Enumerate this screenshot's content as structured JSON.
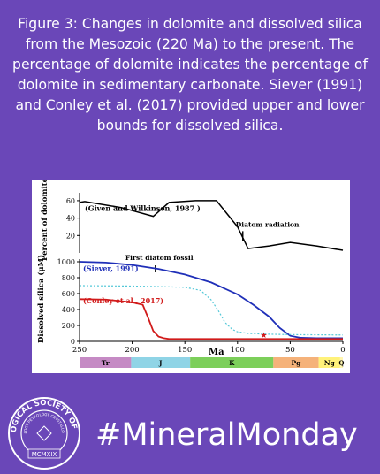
{
  "caption": "Figure 3: Changes in dolomite and dissolved silica from the Mesozoic (220 Ma) to the present. The percentage of dolomite indicates the percentage of dolomite in sedimentary carbonate. Siever (1991) and Conley et al. (2017) provided upper and lower bounds for dissolved silica.",
  "hashtag": "#MineralMonday",
  "seal": {
    "text": "MINERALOGICAL SOCIETY OF AMERICA",
    "inner_text": "MINERALOGY PETROLOGY CRYSTALLOGRAPHY",
    "date": "MCMXIX"
  },
  "colors": {
    "background": "#6a47b8",
    "siever": "#1f2fb8",
    "conley": "#d11a1a",
    "dotted": "#54c8d8"
  },
  "chart_data": [
    {
      "type": "line",
      "ylabel": "Percent of dolomite",
      "yticks": [
        20,
        40,
        60
      ],
      "ylim": [
        0,
        65
      ],
      "xlim": [
        250,
        0
      ],
      "series": [
        {
          "name": "(Given and Wilkinson, 1987 )",
          "x": [
            250,
            245,
            210,
            180,
            165,
            140,
            120,
            100,
            90,
            70,
            50,
            25,
            0
          ],
          "y": [
            58,
            59,
            52,
            42,
            58,
            60,
            60,
            30,
            5,
            8,
            12,
            8,
            3
          ]
        }
      ],
      "annotations": [
        {
          "text": "Diatom radiation",
          "x": 95
        },
        {
          "text": "First diatom fossil",
          "x": 178
        }
      ]
    },
    {
      "type": "line",
      "ylabel": "Dissolved silica (μM)",
      "yticks": [
        0,
        200,
        400,
        600,
        800,
        1000
      ],
      "ylim": [
        0,
        1000
      ],
      "xlabel": "Ma",
      "xticks": [
        250,
        200,
        150,
        100,
        50,
        0
      ],
      "xlim": [
        250,
        0
      ],
      "series": [
        {
          "name": "(Siever, 1991)",
          "x": [
            250,
            225,
            200,
            175,
            150,
            125,
            100,
            85,
            70,
            60,
            50,
            40,
            25,
            0
          ],
          "y": [
            1000,
            990,
            960,
            910,
            840,
            740,
            590,
            460,
            310,
            170,
            70,
            45,
            40,
            40
          ]
        },
        {
          "name": "(Conley et al., 2017)",
          "x": [
            250,
            225,
            200,
            190,
            185,
            180,
            175,
            170,
            165,
            150,
            100,
            50,
            25,
            0
          ],
          "y": [
            530,
            525,
            490,
            460,
            300,
            130,
            60,
            40,
            30,
            30,
            30,
            30,
            30,
            30
          ]
        },
        {
          "style": "dotted",
          "x": [
            250,
            200,
            150,
            135,
            125,
            118,
            112,
            105,
            100,
            90,
            70,
            50,
            0
          ],
          "y": [
            700,
            695,
            680,
            640,
            520,
            380,
            240,
            150,
            120,
            100,
            90,
            85,
            80
          ]
        }
      ],
      "marker": {
        "x": 75,
        "y": 80
      }
    }
  ],
  "periods": [
    {
      "label": "Tr",
      "start": 251,
      "end": 201,
      "color": "#c58ac4"
    },
    {
      "label": "J",
      "start": 201,
      "end": 145,
      "color": "#8fd4e6"
    },
    {
      "label": "K",
      "start": 145,
      "end": 66,
      "color": "#7ccf5a"
    },
    {
      "label": "Pg",
      "start": 66,
      "end": 23,
      "color": "#f5b27a"
    },
    {
      "label": "Ng",
      "start": 23,
      "end": 2.6,
      "color": "#fff27a"
    },
    {
      "label": "Q",
      "start": 2.6,
      "end": 0,
      "color": "#fff6b0"
    }
  ]
}
